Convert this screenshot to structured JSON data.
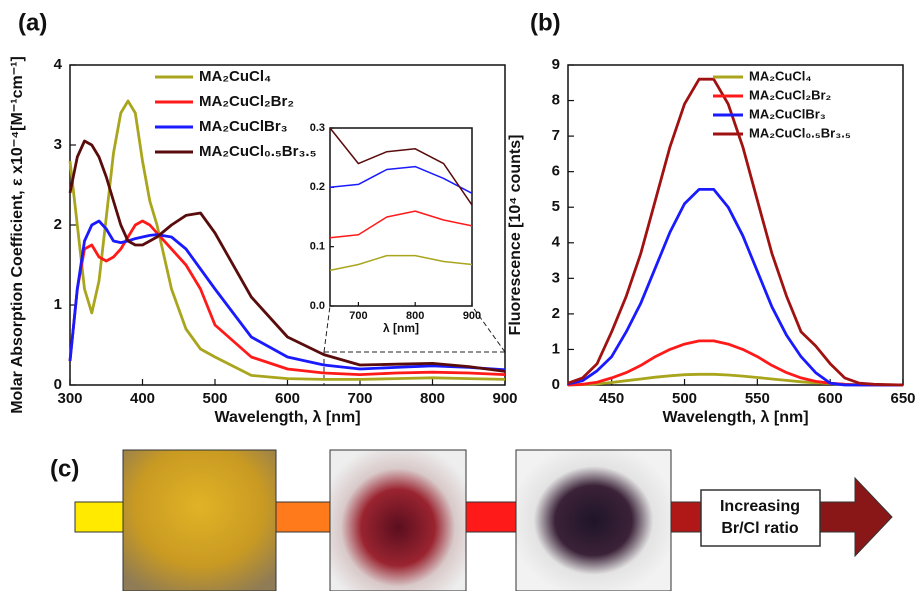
{
  "panel_labels": [
    "(a)",
    "(b)",
    "(c)"
  ],
  "panel_c": {
    "lines": [
      "Increasing",
      "Br/Cl ratio"
    ]
  },
  "chart_data": [
    {
      "type": "line",
      "xlabel": "Wavelength, λ [nm]",
      "ylabel": "Molar Absorption Coefficient, ε x10⁻⁴[M⁻¹cm⁻¹]",
      "xlim": [
        300,
        900
      ],
      "xticks": [
        300,
        400,
        500,
        600,
        700,
        800,
        900
      ],
      "ylim": [
        0,
        4
      ],
      "yticks": [
        0,
        1,
        2,
        3,
        4
      ],
      "legend": "upper center",
      "x": [
        300,
        310,
        320,
        330,
        340,
        350,
        360,
        370,
        380,
        390,
        400,
        410,
        420,
        440,
        460,
        480,
        500,
        550,
        600,
        650,
        700,
        750,
        800,
        850,
        900
      ],
      "series": [
        {
          "name": "MA₂CuCl₄",
          "color": "#a9a61e",
          "values": [
            2.8,
            2.0,
            1.2,
            0.9,
            1.3,
            2.1,
            2.9,
            3.4,
            3.55,
            3.4,
            2.8,
            2.3,
            2.0,
            1.2,
            0.7,
            0.45,
            0.35,
            0.12,
            0.08,
            0.07,
            0.07,
            0.08,
            0.09,
            0.08,
            0.07
          ]
        },
        {
          "name": "MA₂CuCl₂Br₂",
          "color": "#ff1a1a",
          "values": [
            0.3,
            1.2,
            1.7,
            1.75,
            1.6,
            1.55,
            1.6,
            1.7,
            1.85,
            2.0,
            2.05,
            2.0,
            1.9,
            1.7,
            1.5,
            1.2,
            0.75,
            0.35,
            0.2,
            0.15,
            0.13,
            0.15,
            0.16,
            0.15,
            0.13
          ]
        },
        {
          "name": "MA₂CuClBr₃",
          "color": "#1a1aff",
          "values": [
            0.3,
            1.2,
            1.8,
            2.0,
            2.05,
            1.95,
            1.8,
            1.78,
            1.8,
            1.83,
            1.85,
            1.87,
            1.88,
            1.85,
            1.7,
            1.45,
            1.2,
            0.6,
            0.35,
            0.25,
            0.2,
            0.22,
            0.24,
            0.22,
            0.19
          ]
        },
        {
          "name": "MA₂CuCl₀.₅Br₃.₅",
          "color": "#5a0c0c",
          "values": [
            2.4,
            2.85,
            3.05,
            3.0,
            2.85,
            2.6,
            2.3,
            2.0,
            1.8,
            1.75,
            1.75,
            1.8,
            1.85,
            2.0,
            2.12,
            2.15,
            1.9,
            1.1,
            0.6,
            0.38,
            0.25,
            0.26,
            0.27,
            0.23,
            0.17
          ]
        }
      ]
    },
    {
      "type": "line",
      "xlabel": "λ [nm]",
      "xlim": [
        650,
        900
      ],
      "xticks": [
        700,
        800,
        900
      ],
      "ylim": [
        0,
        0.3
      ],
      "yticks": [
        {
          "value": 0,
          "label": "0.0"
        },
        0.1,
        0.2,
        0.3
      ],
      "x": [
        650,
        700,
        750,
        800,
        850,
        900
      ],
      "series": [
        {
          "color": "#a9a61e",
          "values": [
            0.06,
            0.07,
            0.085,
            0.085,
            0.075,
            0.07
          ]
        },
        {
          "color": "#ff1a1a",
          "values": [
            0.115,
            0.12,
            0.15,
            0.16,
            0.145,
            0.135
          ]
        },
        {
          "color": "#1a1aff",
          "values": [
            0.2,
            0.205,
            0.23,
            0.235,
            0.215,
            0.19
          ]
        },
        {
          "color": "#5a0c0c",
          "values": [
            0.3,
            0.24,
            0.26,
            0.265,
            0.24,
            0.17
          ]
        }
      ]
    },
    {
      "type": "line",
      "xlabel": "Wavelength, λ [nm]",
      "ylabel": "Fluorescence [10⁴ counts]",
      "xlim": [
        420,
        650
      ],
      "xticks": [
        450,
        500,
        550,
        600,
        650
      ],
      "ylim": [
        0,
        9
      ],
      "yticks": [
        0,
        1,
        2,
        3,
        4,
        5,
        6,
        7,
        8,
        9
      ],
      "legend": "upper right",
      "x": [
        420,
        430,
        440,
        450,
        460,
        470,
        480,
        490,
        500,
        510,
        520,
        530,
        540,
        550,
        560,
        570,
        580,
        590,
        600,
        610,
        620,
        630,
        640,
        650
      ],
      "series": [
        {
          "name": "MA₂CuCl₄",
          "color": "#a9a61e",
          "values": [
            0,
            0.01,
            0.03,
            0.07,
            0.12,
            0.17,
            0.22,
            0.26,
            0.29,
            0.3,
            0.3,
            0.28,
            0.25,
            0.21,
            0.17,
            0.13,
            0.09,
            0.06,
            0.04,
            0.02,
            0.01,
            0,
            0,
            0
          ]
        },
        {
          "name": "MA₂CuCl₂Br₂",
          "color": "#ff1a1a",
          "values": [
            0,
            0.02,
            0.08,
            0.2,
            0.35,
            0.55,
            0.8,
            1.0,
            1.15,
            1.24,
            1.24,
            1.15,
            1.0,
            0.8,
            0.55,
            0.35,
            0.2,
            0.1,
            0.05,
            0.02,
            0,
            0,
            0,
            0
          ]
        },
        {
          "name": "MA₂CuClBr₃",
          "color": "#1a1aff",
          "values": [
            0.03,
            0.12,
            0.4,
            0.8,
            1.5,
            2.3,
            3.3,
            4.3,
            5.1,
            5.5,
            5.5,
            5.0,
            4.2,
            3.2,
            2.2,
            1.4,
            0.8,
            0.35,
            0.05,
            0,
            0,
            0,
            0,
            0
          ]
        },
        {
          "name": "MA₂CuCl₀.₅Br₃.₅",
          "color": "#a01212",
          "values": [
            0.05,
            0.2,
            0.6,
            1.5,
            2.5,
            3.7,
            5.2,
            6.7,
            7.9,
            8.6,
            8.6,
            7.9,
            6.7,
            5.2,
            3.7,
            2.5,
            1.5,
            1.1,
            0.6,
            0.2,
            0.05,
            0.02,
            0.01,
            0
          ]
        }
      ]
    }
  ]
}
